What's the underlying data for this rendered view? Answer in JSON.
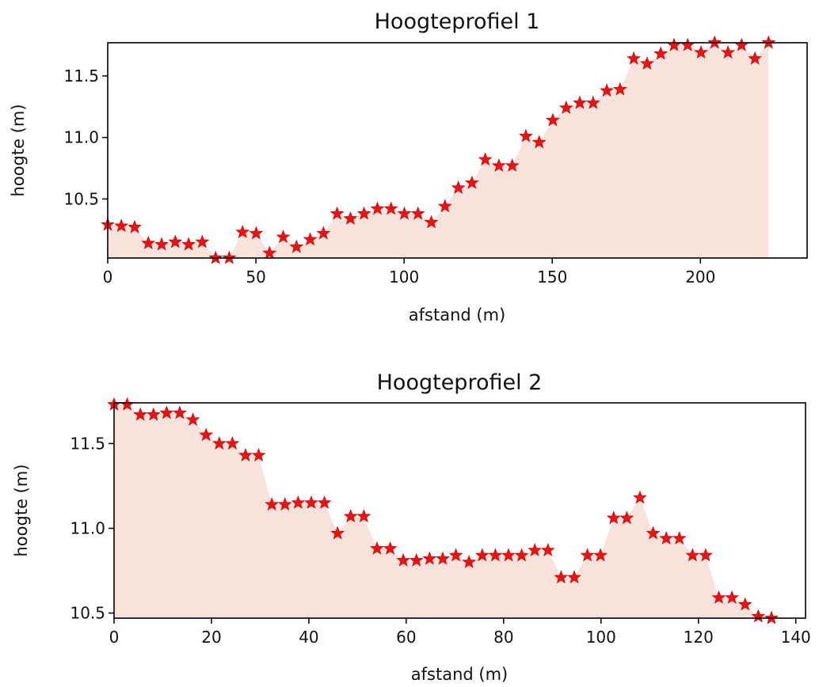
{
  "chart_data": [
    {
      "type": "area",
      "title": "Hoogteprofiel 1",
      "xlabel": "afstand (m)",
      "ylabel": "hoogte (m)",
      "xlim": [
        0,
        236
      ],
      "ylim": [
        10.02,
        11.77
      ],
      "xticks": [
        0,
        50,
        100,
        150,
        200
      ],
      "xtick_labels": [
        "0",
        "50",
        "100",
        "150",
        "200"
      ],
      "yticks": [
        10.5,
        11.0,
        11.5
      ],
      "ytick_labels": [
        "10.5",
        "11.0",
        "11.5"
      ],
      "marker": "star",
      "grid": false,
      "colors": {
        "marker": "#ee1111",
        "fill": "#f7e3dc"
      },
      "x": [
        0,
        4.6,
        9.1,
        13.7,
        18.2,
        22.8,
        27.3,
        31.9,
        36.4,
        41.0,
        45.5,
        50.1,
        54.6,
        59.2,
        63.7,
        68.3,
        72.8,
        77.4,
        81.9,
        86.5,
        91.0,
        95.6,
        100.1,
        104.7,
        109.2,
        113.8,
        118.3,
        122.9,
        127.4,
        132.0,
        136.5,
        141.1,
        145.6,
        150.2,
        154.7,
        159.3,
        163.8,
        168.4,
        172.9,
        177.5,
        182.0,
        186.6,
        191.1,
        195.7,
        200.2,
        204.8,
        209.3,
        213.9,
        218.4,
        223.0
      ],
      "y": [
        10.29,
        10.28,
        10.27,
        10.14,
        10.13,
        10.15,
        10.13,
        10.15,
        10.02,
        10.02,
        10.23,
        10.22,
        10.06,
        10.19,
        10.11,
        10.17,
        10.22,
        10.38,
        10.34,
        10.38,
        10.42,
        10.42,
        10.38,
        10.38,
        10.31,
        10.44,
        10.59,
        10.63,
        10.82,
        10.77,
        10.77,
        11.01,
        10.96,
        11.14,
        11.24,
        11.28,
        11.28,
        11.38,
        11.39,
        11.64,
        11.6,
        11.68,
        11.75,
        11.75,
        11.69,
        11.77,
        11.69,
        11.75,
        11.64,
        11.77
      ]
    },
    {
      "type": "area",
      "title": "Hoogteprofiel 2",
      "xlabel": "afstand (m)",
      "ylabel": "hoogte (m)",
      "xlim": [
        0,
        142
      ],
      "ylim": [
        10.47,
        11.74
      ],
      "xticks": [
        0,
        20,
        40,
        60,
        80,
        100,
        120,
        140
      ],
      "xtick_labels": [
        "0",
        "20",
        "40",
        "60",
        "80",
        "100",
        "120",
        "140"
      ],
      "yticks": [
        10.5,
        11.0,
        11.5
      ],
      "ytick_labels": [
        "10.5",
        "11.0",
        "11.5"
      ],
      "marker": "star",
      "grid": false,
      "colors": {
        "marker": "#ee1111",
        "fill": "#f7e3dc"
      },
      "x": [
        0,
        2.7,
        5.4,
        8.1,
        10.8,
        13.5,
        16.2,
        18.9,
        21.6,
        24.3,
        27.0,
        29.7,
        32.4,
        35.1,
        37.8,
        40.5,
        43.2,
        45.9,
        48.6,
        51.3,
        54.0,
        56.7,
        59.4,
        62.1,
        64.8,
        67.5,
        70.2,
        72.9,
        75.6,
        78.3,
        81.0,
        83.7,
        86.4,
        89.1,
        91.8,
        94.5,
        97.2,
        99.9,
        102.6,
        105.3,
        108.0,
        110.7,
        113.4,
        116.1,
        118.8,
        121.5,
        124.2,
        126.9,
        129.6,
        132.3,
        135.0
      ],
      "y": [
        11.73,
        11.73,
        11.67,
        11.67,
        11.68,
        11.68,
        11.64,
        11.55,
        11.5,
        11.5,
        11.43,
        11.43,
        11.14,
        11.14,
        11.15,
        11.15,
        11.15,
        10.97,
        11.07,
        11.07,
        10.88,
        10.88,
        10.81,
        10.81,
        10.82,
        10.82,
        10.84,
        10.8,
        10.84,
        10.84,
        10.84,
        10.84,
        10.87,
        10.87,
        10.71,
        10.71,
        10.84,
        10.84,
        11.06,
        11.06,
        11.18,
        10.97,
        10.94,
        10.94,
        10.84,
        10.84,
        10.59,
        10.59,
        10.55,
        10.48,
        10.47
      ]
    }
  ]
}
